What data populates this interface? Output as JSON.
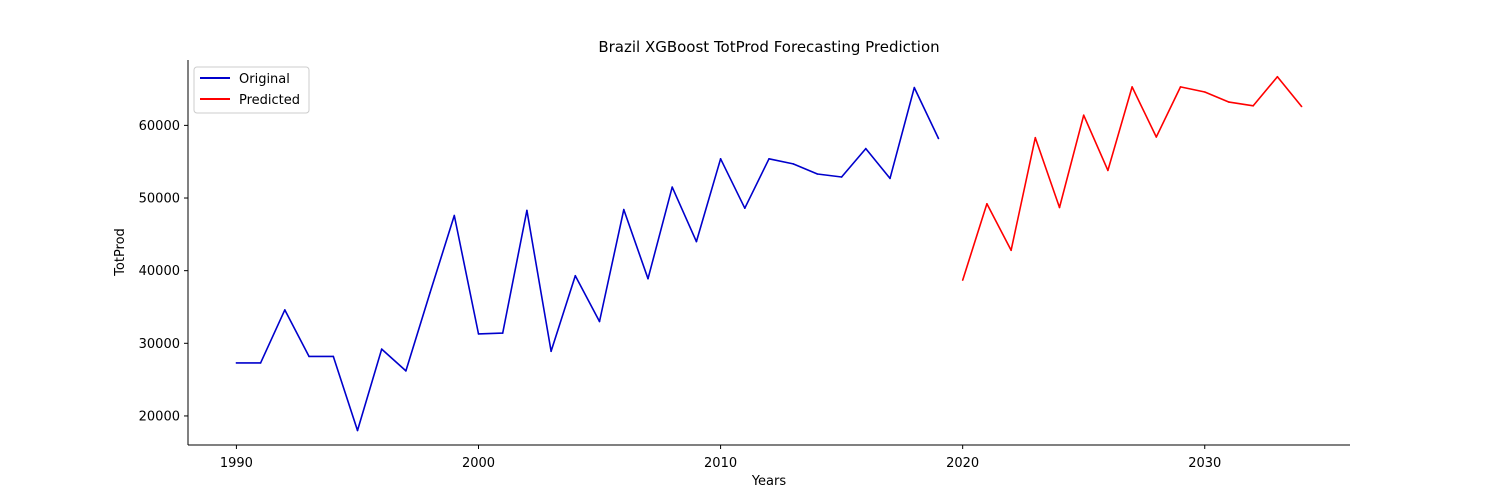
{
  "chart_data": {
    "type": "line",
    "title": "Brazil XGBoost TotProd Forecasting Prediction",
    "xlabel": "Years",
    "ylabel": "TotProd",
    "xlim": [
      1988,
      2036
    ],
    "ylim": [
      16000,
      69000
    ],
    "xticks": [
      1990,
      2000,
      2010,
      2020,
      2030
    ],
    "yticks": [
      20000,
      30000,
      40000,
      50000,
      60000
    ],
    "grid": false,
    "legend_position": "top-left",
    "series": [
      {
        "name": "Original",
        "color": "#0000cc",
        "x": [
          1990,
          1991,
          1992,
          1993,
          1994,
          1995,
          1996,
          1997,
          1998,
          1999,
          2000,
          2001,
          2002,
          2003,
          2004,
          2005,
          2006,
          2007,
          2008,
          2009,
          2010,
          2011,
          2012,
          2013,
          2014,
          2015,
          2016,
          2017,
          2018,
          2019
        ],
        "y": [
          27300,
          27300,
          34600,
          28200,
          28200,
          18000,
          29200,
          26200,
          37000,
          47600,
          31300,
          31400,
          48300,
          28900,
          39300,
          33000,
          48400,
          38900,
          51500,
          44000,
          55400,
          48600,
          55400,
          54700,
          53300,
          52900,
          56800,
          52700,
          65200,
          58200
        ]
      },
      {
        "name": "Predicted",
        "color": "#ff0000",
        "x": [
          2020,
          2021,
          2022,
          2023,
          2024,
          2025,
          2026,
          2027,
          2028,
          2029,
          2030,
          2031,
          2032,
          2033,
          2034
        ],
        "y": [
          38700,
          49200,
          42800,
          58300,
          48700,
          61400,
          53800,
          65300,
          58400,
          65300,
          64600,
          63200,
          62700,
          66700,
          62600
        ]
      }
    ]
  }
}
